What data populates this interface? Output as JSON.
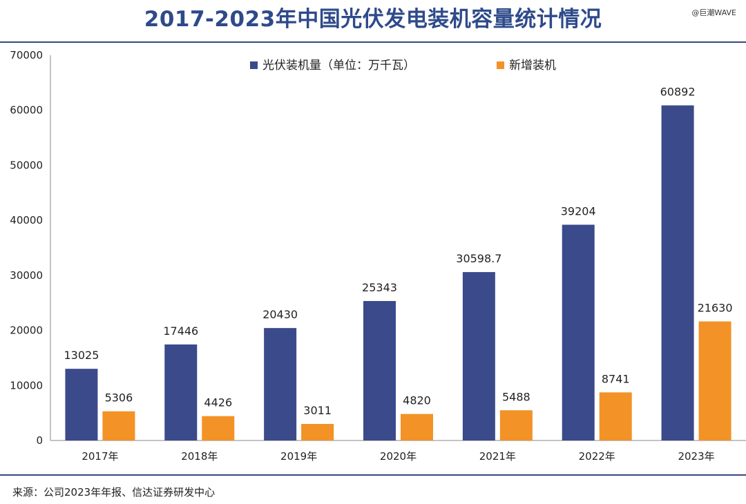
{
  "header": {
    "title": "2017-2023年中国光伏发电装机容量统计情况",
    "watermark": "@巨潮WAVE"
  },
  "footer": {
    "source": "来源：公司2023年年报、信达证券研发中心"
  },
  "colors": {
    "series_installed": "#3b4a8a",
    "series_new": "#f39226",
    "title": "#2e4a8a",
    "rule": "#37477f"
  },
  "chart_data": {
    "type": "bar",
    "title": "2017-2023年中国光伏发电装机容量统计情况",
    "categories": [
      "2017年",
      "2018年",
      "2019年",
      "2020年",
      "2021年",
      "2022年",
      "2023年"
    ],
    "series": [
      {
        "name": "光伏装机量（单位：万千瓦）",
        "values": [
          13025,
          17446,
          20430,
          25343,
          30598.7,
          39204,
          60892
        ],
        "labels": [
          "13025",
          "17446",
          "20430",
          "25343",
          "30598.7",
          "39204",
          "60892"
        ]
      },
      {
        "name": "新增装机",
        "values": [
          5306,
          4426,
          3011,
          4820,
          5488,
          8741,
          21630
        ],
        "labels": [
          "5306",
          "4426",
          "3011",
          "4820",
          "5488",
          "8741",
          "21630"
        ]
      }
    ],
    "y_ticks": [
      "0",
      "10000",
      "20000",
      "30000",
      "40000",
      "50000",
      "60000",
      "70000"
    ],
    "ylim": [
      0,
      70000
    ],
    "xlabel": "",
    "ylabel": "",
    "grid": false,
    "legend_position": "top-center"
  }
}
